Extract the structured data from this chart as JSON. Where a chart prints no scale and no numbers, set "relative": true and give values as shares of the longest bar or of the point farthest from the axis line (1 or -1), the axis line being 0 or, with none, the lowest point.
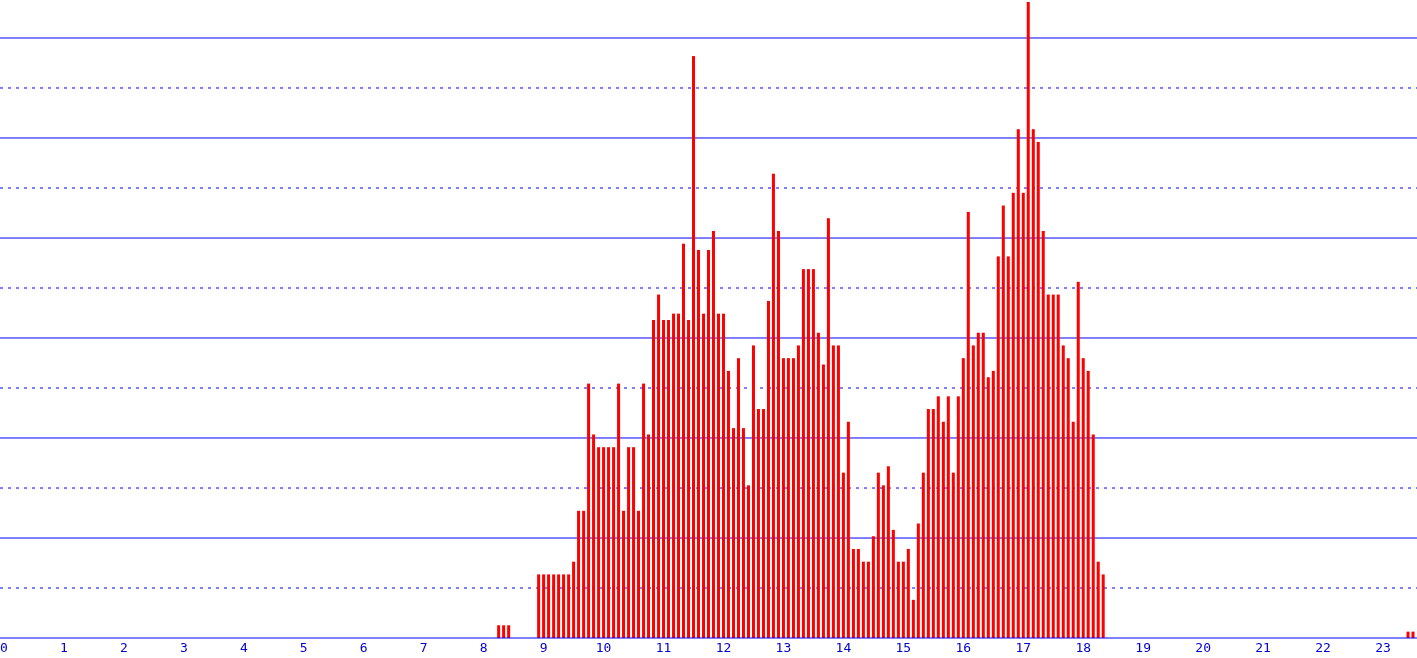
{
  "chart_data": {
    "type": "bar",
    "relative": true,
    "color": "#ff0000",
    "ref_lines": [
      {
        "axis": "y",
        "value": 0.0786,
        "color": "#0000ff",
        "line_style": "dotted"
      },
      {
        "axis": "y",
        "value": 0.1572,
        "color": "#0000ff",
        "line_style": "solid"
      },
      {
        "axis": "y",
        "value": 0.2358,
        "color": "#0000ff",
        "line_style": "dotted"
      },
      {
        "axis": "y",
        "value": 0.3145,
        "color": "#0000ff",
        "line_style": "solid"
      },
      {
        "axis": "y",
        "value": 0.3931,
        "color": "#0000ff",
        "line_style": "dotted"
      },
      {
        "axis": "y",
        "value": 0.4717,
        "color": "#0000ff",
        "line_style": "solid"
      },
      {
        "axis": "y",
        "value": 0.5503,
        "color": "#0000ff",
        "line_style": "dotted"
      },
      {
        "axis": "y",
        "value": 0.6289,
        "color": "#0000ff",
        "line_style": "solid"
      },
      {
        "axis": "y",
        "value": 0.7075,
        "color": "#0000ff",
        "line_style": "dotted"
      },
      {
        "axis": "y",
        "value": 0.7862,
        "color": "#0000ff",
        "line_style": "solid"
      },
      {
        "axis": "y",
        "value": 0.8648,
        "color": "#0000ff",
        "line_style": "dotted"
      },
      {
        "axis": "y",
        "value": 0.9434,
        "color": "#0000ff",
        "line_style": "solid"
      }
    ],
    "x": [
      8.25,
      8.333,
      8.417,
      8.917,
      9,
      9.083,
      9.167,
      9.25,
      9.333,
      9.417,
      9.5,
      9.583,
      9.667,
      9.75,
      9.833,
      9.917,
      10,
      10.083,
      10.167,
      10.25,
      10.333,
      10.417,
      10.5,
      10.583,
      10.667,
      10.75,
      10.833,
      10.917,
      11,
      11.083,
      11.167,
      11.25,
      11.333,
      11.417,
      11.5,
      11.583,
      11.667,
      11.75,
      11.833,
      11.917,
      12,
      12.083,
      12.167,
      12.25,
      12.333,
      12.417,
      12.5,
      12.583,
      12.667,
      12.75,
      12.833,
      12.917,
      13,
      13.083,
      13.167,
      13.25,
      13.333,
      13.417,
      13.5,
      13.583,
      13.667,
      13.75,
      13.833,
      13.917,
      14,
      14.083,
      14.167,
      14.25,
      14.333,
      14.417,
      14.5,
      14.583,
      14.667,
      14.75,
      14.833,
      14.917,
      15,
      15.083,
      15.167,
      15.25,
      15.333,
      15.417,
      15.5,
      15.583,
      15.667,
      15.75,
      15.833,
      15.917,
      16,
      16.083,
      16.167,
      16.25,
      16.333,
      16.417,
      16.5,
      16.583,
      16.667,
      16.75,
      16.833,
      16.917,
      17,
      17.083,
      17.167,
      17.25,
      17.333,
      17.417,
      17.5,
      17.583,
      17.667,
      17.75,
      17.833,
      17.917,
      18,
      18.083,
      18.167,
      18.25,
      18.333,
      23.417,
      23.5
    ],
    "values": [
      0.02,
      0.02,
      0.02,
      0.1,
      0.1,
      0.1,
      0.1,
      0.1,
      0.1,
      0.1,
      0.12,
      0.2,
      0.2,
      0.4,
      0.32,
      0.3,
      0.3,
      0.3,
      0.3,
      0.4,
      0.2,
      0.3,
      0.3,
      0.2,
      0.4,
      0.32,
      0.5,
      0.54,
      0.5,
      0.5,
      0.51,
      0.51,
      0.62,
      0.5,
      0.915,
      0.61,
      0.51,
      0.61,
      0.64,
      0.51,
      0.51,
      0.42,
      0.33,
      0.44,
      0.33,
      0.24,
      0.46,
      0.36,
      0.36,
      0.53,
      0.73,
      0.64,
      0.44,
      0.44,
      0.44,
      0.46,
      0.58,
      0.58,
      0.58,
      0.48,
      0.43,
      0.66,
      0.46,
      0.46,
      0.26,
      0.34,
      0.14,
      0.14,
      0.12,
      0.12,
      0.16,
      0.26,
      0.24,
      0.27,
      0.17,
      0.12,
      0.12,
      0.14,
      0.06,
      0.18,
      0.26,
      0.36,
      0.36,
      0.38,
      0.34,
      0.38,
      0.26,
      0.38,
      0.44,
      0.67,
      0.46,
      0.48,
      0.48,
      0.41,
      0.42,
      0.6,
      0.68,
      0.6,
      0.7,
      0.8,
      0.7,
      1,
      0.8,
      0.78,
      0.64,
      0.54,
      0.54,
      0.54,
      0.46,
      0.44,
      0.34,
      0.56,
      0.44,
      0.42,
      0.32,
      0.12,
      0.1,
      0.01,
      0.01
    ],
    "xlim": [
      0,
      23.5
    ],
    "xticks": [
      0,
      1,
      2,
      3,
      4,
      5,
      6,
      7,
      8,
      9,
      10,
      11,
      12,
      13,
      14,
      15,
      16,
      17,
      18,
      19,
      20,
      21,
      22,
      23
    ]
  }
}
